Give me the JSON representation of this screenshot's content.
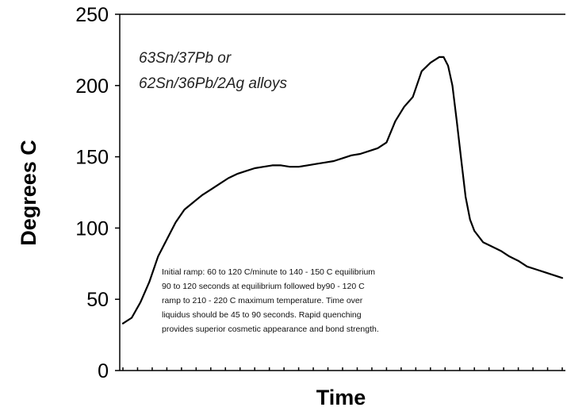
{
  "chart_data": {
    "type": "line",
    "title": "",
    "xlabel": "Time",
    "ylabel": "Degrees C",
    "ylim": [
      0,
      250
    ],
    "yticks": [
      0,
      50,
      100,
      150,
      200,
      250
    ],
    "xlim": [
      0,
      100
    ],
    "x_tick_count": 30,
    "x_tick_labels_shown": false,
    "grid": false,
    "legend": "none",
    "line_color": "#000000",
    "annotations": {
      "alloys": [
        "63Sn/37Pb or",
        "62Sn/36Pb/2Ag alloys"
      ],
      "note": [
        "Initial ramp:  60 to 120 C/minute to 140 - 150 C equilibrium",
        "90 to 120 seconds at equilibrium followed by90 - 120 C",
        "ramp to 210 - 220 C maximum temperature.  Time over",
        "liquidus should be 45 to 90 seconds.  Rapid quenching",
        "provides superior cosmetic appearance and bond strength."
      ]
    },
    "series": [
      {
        "x": [
          0,
          2,
          4,
          6,
          8,
          10,
          12,
          14,
          16,
          18,
          20,
          22,
          24,
          26,
          28,
          30,
          32,
          34,
          36,
          38,
          40,
          42,
          44,
          46,
          48,
          50,
          52,
          54,
          56,
          58,
          60,
          62,
          64,
          66,
          68,
          70,
          72,
          73,
          74,
          75,
          76,
          77,
          78,
          79,
          80,
          82,
          84,
          86,
          88,
          90,
          92,
          94,
          96,
          98,
          100
        ],
        "y": [
          33,
          37,
          48,
          62,
          80,
          92,
          104,
          113,
          118,
          123,
          127,
          131,
          135,
          138,
          140,
          142,
          143,
          144,
          144,
          143,
          143,
          144,
          145,
          146,
          147,
          149,
          151,
          152,
          154,
          156,
          160,
          175,
          185,
          192,
          210,
          216,
          220,
          220,
          214,
          200,
          175,
          148,
          122,
          106,
          98,
          90,
          87,
          84,
          80,
          77,
          73,
          71,
          69,
          67,
          65
        ]
      }
    ]
  }
}
